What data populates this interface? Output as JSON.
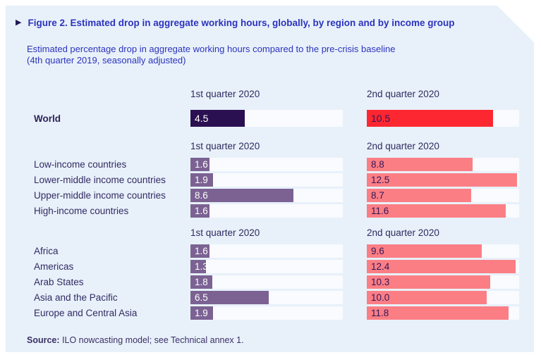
{
  "figure": {
    "marker_glyph": "▶",
    "title": "Figure 2. Estimated drop in aggregate working hours, globally, by region and by income group",
    "subtitle_line1": "Estimated percentage drop in aggregate working hours compared to the pre-crisis baseline",
    "subtitle_line2": "(4th quarter 2019, seasonally adjusted)",
    "source_label": "Source:",
    "source_text": " ILO nowcasting model; see Technical annex 1."
  },
  "colors": {
    "panel_bg": "#e8f1fa",
    "page_bg": "#ffffff",
    "track_bg": "#f9fbfe",
    "q1_world_bar": "#2b1051",
    "q1_bar": "#7b6293",
    "q2_world_bar": "#fd2731",
    "q2_bar": "#fc7e85",
    "q1_value_text": "#ffffff",
    "q2_value_text": "#31175a",
    "title_text": "#2c33bd",
    "label_text": "#322a63"
  },
  "chart_data": {
    "type": "bar",
    "title": "Figure 2. Estimated drop in aggregate working hours, globally, by region and by income group",
    "subtitle": "Estimated percentage drop in aggregate working hours compared to the pre-crisis baseline (4th quarter 2019, seasonally adjusted)",
    "unit": "percentage drop vs pre-crisis baseline",
    "column_headers": [
      "1st quarter 2020",
      "2nd quarter 2020"
    ],
    "axis_max": 12.7,
    "legend_position": "none",
    "grid": false,
    "sections": [
      {
        "name": "world",
        "rows": [
          {
            "label": "World",
            "q1": "4.5",
            "q2": "10.5"
          }
        ]
      },
      {
        "name": "income-groups",
        "rows": [
          {
            "label": "Low-income countries",
            "q1": "1.6",
            "q2": "8.8"
          },
          {
            "label": "Lower-middle income countries",
            "q1": "1.9",
            "q2": "12.5"
          },
          {
            "label": "Upper-middle income countries",
            "q1": "8.6",
            "q2": "8.7"
          },
          {
            "label": "High-income countries",
            "q1": "1.6",
            "q2": "11.6"
          }
        ]
      },
      {
        "name": "regions",
        "rows": [
          {
            "label": "Africa",
            "q1": "1.6",
            "q2": "9.6"
          },
          {
            "label": "Americas",
            "q1": "1.3",
            "q2": "12.4"
          },
          {
            "label": "Arab States",
            "q1": "1.8",
            "q2": "10.3"
          },
          {
            "label": "Asia and the Pacific",
            "q1": "6.5",
            "q2": "10.0"
          },
          {
            "label": "Europe and Central Asia",
            "q1": "1.9",
            "q2": "11.8"
          }
        ]
      }
    ]
  }
}
